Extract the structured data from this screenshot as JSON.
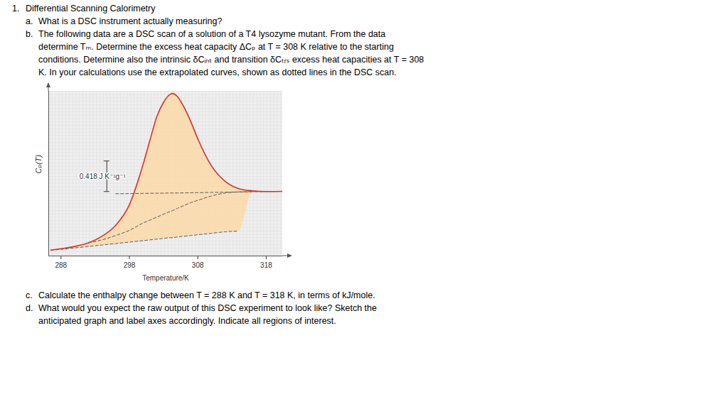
{
  "document": {
    "number": "1.",
    "title": "Differential Scanning Calorimetry",
    "before_chart": [
      {
        "label": "a.",
        "lines": [
          "What is a DSC instrument actually measuring?"
        ]
      },
      {
        "label": "b.",
        "lines": [
          "The following data are a DSC scan of a solution of a T4 lysozyme mutant. From the data",
          "determine Tₘ. Determine the excess heat capacity ΔCₚ at T = 308 K relative to the starting",
          "conditions. Determine also the intrinsic δCᵢₙₜ and transition δCₜᵣₛ excess heat capacities at T = 308",
          "K. In your calculations use the extrapolated curves, shown as dotted lines in the DSC scan."
        ]
      }
    ],
    "after_chart": [
      {
        "label": "c.",
        "lines": [
          "Calculate the enthalpy change between T = 288 K and T = 318 K, in terms of kJ/mole."
        ]
      },
      {
        "label": "d.",
        "lines": [
          "What would you expect the raw output of this DSC experiment to look like? Sketch the",
          "anticipated graph and label axes accordingly. Indicate all regions of interest."
        ]
      }
    ]
  },
  "chart_data": {
    "type": "line",
    "xlabel": "Temperature/K",
    "ylabel": "Cₚ(T)",
    "x": [
      286.5,
      288,
      290,
      292,
      294,
      296,
      298,
      300,
      301,
      302,
      303,
      304,
      304.3,
      305,
      306,
      307,
      308,
      310,
      312,
      314,
      316,
      318,
      320.3
    ],
    "series": [
      {
        "type": "area",
        "color": "#fbd9a8",
        "values": [
          0.08,
          0.1,
          0.13,
          0.18,
          0.27,
          0.42,
          0.7,
          1.25,
          1.58,
          1.9,
          2.1,
          2.21,
          2.22,
          2.18,
          2.03,
          1.83,
          1.6,
          1.23,
          1.02,
          0.92,
          0.89,
          0.88,
          0.883
        ],
        "base": [
          0.08,
          0.09,
          0.11,
          0.13,
          0.15,
          0.17,
          0.19,
          0.21,
          0.22,
          0.23,
          0.24,
          0.25,
          0.25,
          0.26,
          0.27,
          0.28,
          0.29,
          0.31,
          0.33,
          0.34,
          0.877,
          0.88,
          0.883
        ]
      },
      {
        "type": "line",
        "color": "#555555",
        "line_style": "dashed",
        "values": [
          0.08,
          0.09,
          0.11,
          0.13,
          0.15,
          0.17,
          0.19,
          0.21,
          0.22,
          0.23,
          0.24,
          0.25,
          0.25,
          0.26,
          0.27,
          0.28,
          0.29,
          0.31,
          0.33,
          0.34,
          null,
          null,
          null
        ]
      },
      {
        "type": "line",
        "color": "#555555",
        "line_style": "dashed",
        "values": [
          null,
          null,
          null,
          0.18,
          0.22,
          0.28,
          0.35,
          0.45,
          0.49,
          0.53,
          0.57,
          0.61,
          0.62,
          0.65,
          0.69,
          0.73,
          0.76,
          0.82,
          0.86,
          0.875,
          0.88,
          0.882,
          null
        ]
      },
      {
        "type": "line",
        "color": "#555555",
        "line_style": "dashed",
        "values": [
          null,
          null,
          null,
          null,
          null,
          0.85,
          0.852,
          0.855,
          0.856,
          0.857,
          0.858,
          0.86,
          0.86,
          0.861,
          0.862,
          0.864,
          0.865,
          0.868,
          0.871,
          0.874,
          0.877,
          0.88,
          0.883
        ]
      },
      {
        "type": "line",
        "color": "#d9302c",
        "line_style": "solid",
        "values": [
          0.08,
          0.1,
          0.13,
          0.18,
          0.27,
          0.42,
          0.7,
          1.25,
          1.58,
          1.9,
          2.1,
          2.21,
          2.22,
          2.18,
          2.03,
          1.83,
          1.6,
          1.23,
          1.02,
          0.92,
          0.89,
          0.88,
          0.883
        ]
      }
    ],
    "scale_bar": {
      "x": 294.7,
      "y0": 0.875,
      "value": 0.418,
      "label": "0.418 J K⁻¹g⁻¹"
    },
    "xlim": [
      286.2,
      320.4
    ],
    "xticks": [
      288,
      298,
      308,
      318
    ],
    "ylim": [
      0,
      2.25
    ],
    "tick_labels": "x",
    "grid": true
  }
}
